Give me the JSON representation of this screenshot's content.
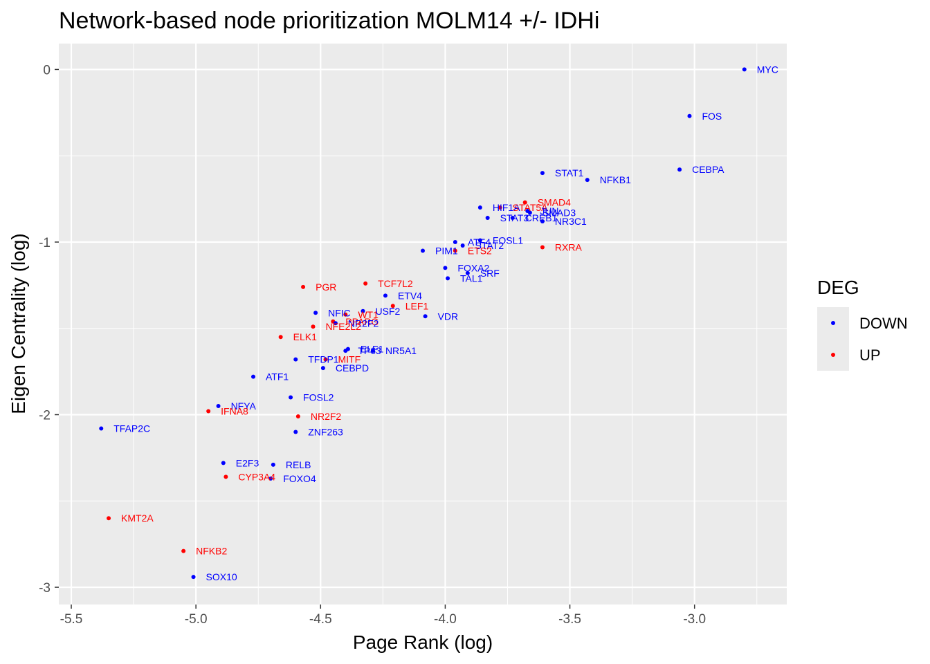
{
  "chart_data": {
    "type": "scatter",
    "title": "Network-based node prioritization MOLM14 +/- IDHi",
    "xlabel": "Page Rank (log)",
    "ylabel": "Eigen Centrality (log)",
    "xlim": [
      -5.55,
      -2.63
    ],
    "ylim": [
      -3.1,
      0.15
    ],
    "x_ticks": [
      -5.5,
      -5.0,
      -4.5,
      -4.0,
      -3.5,
      -3.0
    ],
    "x_tick_labels": [
      "-5.5",
      "-5.0",
      "-4.5",
      "-4.0",
      "-3.5",
      "-3.0"
    ],
    "y_ticks": [
      0,
      -1,
      -2,
      -3
    ],
    "y_tick_labels": [
      "0",
      "-1",
      "-2",
      "-3"
    ],
    "grid": true,
    "legend": {
      "title": "DEG",
      "placement": "right",
      "entries": [
        {
          "label": "DOWN",
          "color": "#0000ff"
        },
        {
          "label": "UP",
          "color": "#ff0000"
        }
      ]
    },
    "colors": {
      "DOWN": "#0000ff",
      "UP": "#ff0000"
    },
    "points": [
      {
        "label": "MYC",
        "x": -2.8,
        "y": 0.0,
        "group": "DOWN"
      },
      {
        "label": "FOS",
        "x": -3.02,
        "y": -0.27,
        "group": "DOWN"
      },
      {
        "label": "CEBPA",
        "x": -3.06,
        "y": -0.58,
        "group": "DOWN"
      },
      {
        "label": "STAT1",
        "x": -3.61,
        "y": -0.6,
        "group": "DOWN"
      },
      {
        "label": "NFKB1",
        "x": -3.43,
        "y": -0.64,
        "group": "DOWN"
      },
      {
        "label": "SMAD4",
        "x": -3.68,
        "y": -0.77,
        "group": "UP"
      },
      {
        "label": "HIF1A",
        "x": -3.86,
        "y": -0.8,
        "group": "DOWN"
      },
      {
        "label": "STAT5A",
        "x": -3.78,
        "y": -0.8,
        "group": "UP"
      },
      {
        "label": "JUN",
        "x": -3.67,
        "y": -0.82,
        "group": "DOWN"
      },
      {
        "label": "SMAD3",
        "x": -3.66,
        "y": -0.83,
        "group": "DOWN"
      },
      {
        "label": "STAT3",
        "x": -3.83,
        "y": -0.86,
        "group": "DOWN"
      },
      {
        "label": "CREB1",
        "x": -3.73,
        "y": -0.86,
        "group": "DOWN"
      },
      {
        "label": "NR3C1",
        "x": -3.61,
        "y": -0.88,
        "group": "DOWN"
      },
      {
        "label": "FOSL1",
        "x": -3.86,
        "y": -0.99,
        "group": "DOWN"
      },
      {
        "label": "ATF4",
        "x": -3.96,
        "y": -1.0,
        "group": "DOWN"
      },
      {
        "label": "STAT2",
        "x": -3.93,
        "y": -1.02,
        "group": "DOWN"
      },
      {
        "label": "PIM1",
        "x": -4.09,
        "y": -1.05,
        "group": "DOWN"
      },
      {
        "label": "ETS2",
        "x": -3.96,
        "y": -1.05,
        "group": "UP"
      },
      {
        "label": "RXRA",
        "x": -3.61,
        "y": -1.03,
        "group": "UP"
      },
      {
        "label": "FOXA2",
        "x": -4.0,
        "y": -1.15,
        "group": "DOWN"
      },
      {
        "label": "SRF",
        "x": -3.91,
        "y": -1.18,
        "group": "DOWN"
      },
      {
        "label": "TAL1",
        "x": -3.99,
        "y": -1.21,
        "group": "DOWN"
      },
      {
        "label": "PGR",
        "x": -4.57,
        "y": -1.26,
        "group": "UP"
      },
      {
        "label": "TCF7L2",
        "x": -4.32,
        "y": -1.24,
        "group": "UP"
      },
      {
        "label": "ETV4",
        "x": -4.24,
        "y": -1.31,
        "group": "DOWN"
      },
      {
        "label": "LEF1",
        "x": -4.21,
        "y": -1.37,
        "group": "UP"
      },
      {
        "label": "NFIC",
        "x": -4.52,
        "y": -1.41,
        "group": "DOWN"
      },
      {
        "label": "USF2",
        "x": -4.33,
        "y": -1.4,
        "group": "DOWN"
      },
      {
        "label": "WT1",
        "x": -4.4,
        "y": -1.42,
        "group": "UP"
      },
      {
        "label": "VDR",
        "x": -4.08,
        "y": -1.43,
        "group": "DOWN"
      },
      {
        "label": "PPARG",
        "x": -4.45,
        "y": -1.46,
        "group": "UP"
      },
      {
        "label": "NR2F2",
        "x": -4.44,
        "y": -1.47,
        "group": "DOWN"
      },
      {
        "label": "NFE2L2",
        "x": -4.53,
        "y": -1.49,
        "group": "UP"
      },
      {
        "label": "ELK1",
        "x": -4.66,
        "y": -1.55,
        "group": "UP"
      },
      {
        "label": "ELF1",
        "x": -4.39,
        "y": -1.62,
        "group": "DOWN"
      },
      {
        "label": "TP63",
        "x": -4.4,
        "y": -1.63,
        "group": "DOWN"
      },
      {
        "label": "NR5A1",
        "x": -4.29,
        "y": -1.63,
        "group": "DOWN"
      },
      {
        "label": "TFDP1",
        "x": -4.6,
        "y": -1.68,
        "group": "DOWN"
      },
      {
        "label": "MITF",
        "x": -4.48,
        "y": -1.68,
        "group": "UP"
      },
      {
        "label": "CEBPD",
        "x": -4.49,
        "y": -1.73,
        "group": "DOWN"
      },
      {
        "label": "ATF1",
        "x": -4.77,
        "y": -1.78,
        "group": "DOWN"
      },
      {
        "label": "FOSL2",
        "x": -4.62,
        "y": -1.9,
        "group": "DOWN"
      },
      {
        "label": "NFYA",
        "x": -4.91,
        "y": -1.95,
        "group": "DOWN"
      },
      {
        "label": "IFNA8",
        "x": -4.95,
        "y": -1.98,
        "group": "UP"
      },
      {
        "label": "NR2F2",
        "x": -4.59,
        "y": -2.01,
        "group": "UP"
      },
      {
        "label": "TFAP2C",
        "x": -5.38,
        "y": -2.08,
        "group": "DOWN"
      },
      {
        "label": "ZNF263",
        "x": -4.6,
        "y": -2.1,
        "group": "DOWN"
      },
      {
        "label": "E2F3",
        "x": -4.89,
        "y": -2.28,
        "group": "DOWN"
      },
      {
        "label": "RELB",
        "x": -4.69,
        "y": -2.29,
        "group": "DOWN"
      },
      {
        "label": "CYP3A4",
        "x": -4.88,
        "y": -2.36,
        "group": "UP"
      },
      {
        "label": "FOXO4",
        "x": -4.7,
        "y": -2.37,
        "group": "DOWN"
      },
      {
        "label": "KMT2A",
        "x": -5.35,
        "y": -2.6,
        "group": "UP"
      },
      {
        "label": "NFKB2",
        "x": -5.05,
        "y": -2.79,
        "group": "UP"
      },
      {
        "label": "SOX10",
        "x": -5.01,
        "y": -2.94,
        "group": "DOWN"
      }
    ]
  }
}
